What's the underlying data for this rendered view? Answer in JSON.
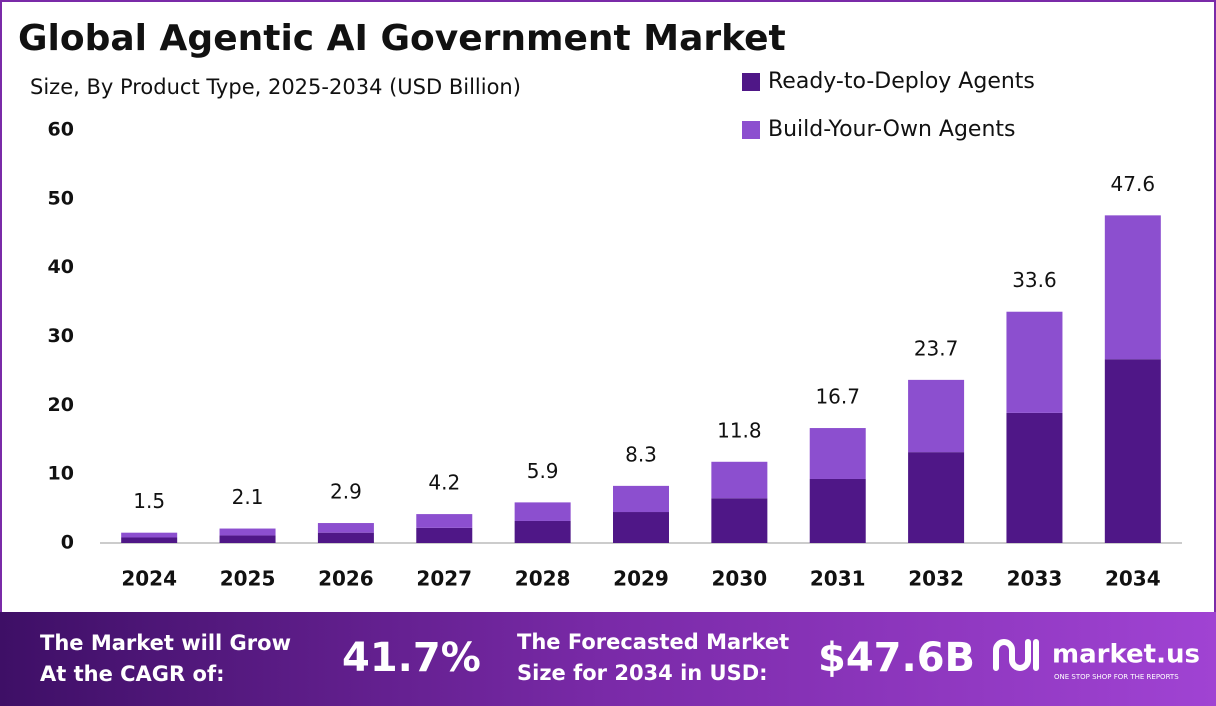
{
  "chart_data": {
    "type": "stacked-bar",
    "title": "Global Agentic AI Government Market",
    "subtitle": "Size, By Product Type, 2025-2034 (USD Billion)",
    "categories": [
      "2024",
      "2025",
      "2026",
      "2027",
      "2028",
      "2029",
      "2030",
      "2031",
      "2032",
      "2033",
      "2034"
    ],
    "series": [
      {
        "name": "Ready-to-Deploy Agents",
        "color": "#4f1787",
        "values": [
          0.8,
          1.1,
          1.5,
          2.2,
          3.2,
          4.5,
          6.5,
          9.3,
          13.2,
          18.9,
          26.7
        ]
      },
      {
        "name": "Build-Your-Own Agents",
        "color": "#8c4fcf",
        "values": [
          0.7,
          1.0,
          1.4,
          2.0,
          2.7,
          3.8,
          5.3,
          7.4,
          10.5,
          14.7,
          20.9
        ]
      }
    ],
    "totals": [
      1.5,
      2.1,
      2.9,
      4.2,
      5.9,
      8.3,
      11.8,
      16.7,
      23.7,
      33.6,
      47.6
    ],
    "ylim": [
      0,
      60
    ],
    "yticks": [
      0,
      10,
      20,
      30,
      40,
      50,
      60
    ],
    "grid": false,
    "legend": "top-right"
  },
  "footer": {
    "cagr_line1": "The Market will Grow",
    "cagr_line2": "At the CAGR of:",
    "cagr_value": "41.7%",
    "forecast_line1": "The Forecasted Market",
    "forecast_line2": "Size for 2034 in USD:",
    "forecast_value": "$47.6B",
    "brand": "market.us",
    "brand_tagline": "ONE STOP SHOP FOR THE REPORTS"
  }
}
